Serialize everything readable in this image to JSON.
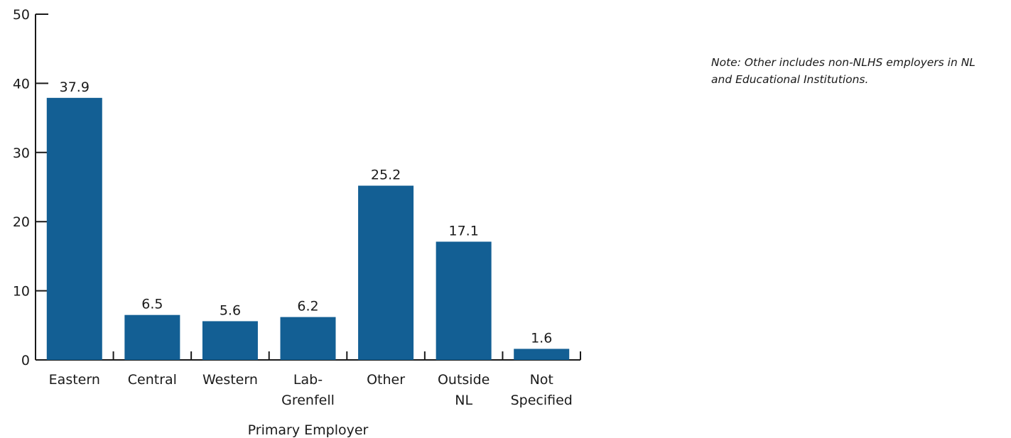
{
  "chart_data": {
    "type": "bar",
    "title": "",
    "xlabel": "Primary Employer",
    "ylabel": "",
    "ylim": [
      0,
      50
    ],
    "yticks": [
      0,
      10,
      20,
      30,
      40,
      50
    ],
    "grid": false,
    "legend": "none",
    "bar_color": "#135f94",
    "categories": [
      [
        "Eastern"
      ],
      [
        "Central"
      ],
      [
        "Western"
      ],
      [
        "Lab-",
        "Grenfell"
      ],
      [
        "Other"
      ],
      [
        "Outside",
        "NL"
      ],
      [
        "Not",
        "Specified"
      ]
    ],
    "values": [
      37.9,
      6.5,
      5.6,
      6.2,
      25.2,
      17.1,
      1.6
    ],
    "value_labels": [
      "37.9",
      "6.5",
      "5.6",
      "6.2",
      "25.2",
      "17.1",
      "1.6"
    ]
  },
  "note": "Note:  Other includes non-NLHS employers in NL and Educational Institutions."
}
